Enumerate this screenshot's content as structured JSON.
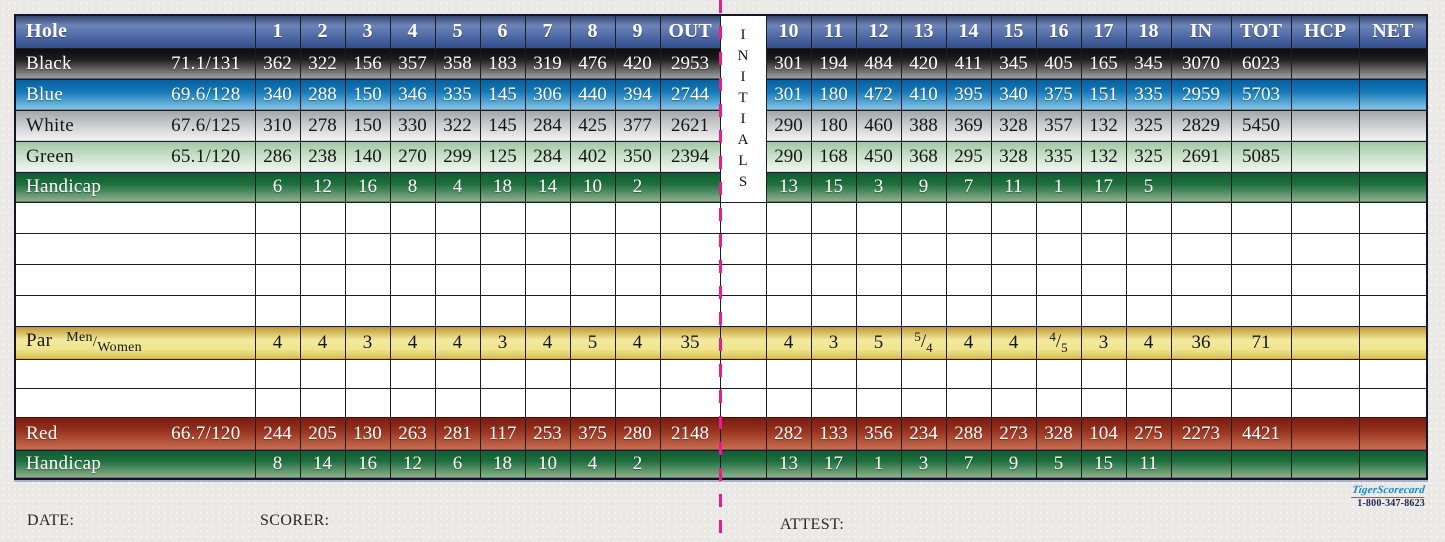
{
  "scorecard": {
    "header_row": {
      "label": "Hole",
      "front": [
        "1",
        "2",
        "3",
        "4",
        "5",
        "6",
        "7",
        "8",
        "9"
      ],
      "out_label": "OUT",
      "back": [
        "10",
        "11",
        "12",
        "13",
        "14",
        "15",
        "16",
        "17",
        "18"
      ],
      "in_label": "IN",
      "tot_label": "TOT",
      "hcp_label": "HCP",
      "net_label": "NET"
    },
    "initials_label": "INITIALS",
    "rows": [
      {
        "id": "black",
        "style": "black",
        "label": "Black",
        "rating": "71.1/131",
        "front": [
          "362",
          "322",
          "156",
          "357",
          "358",
          "183",
          "319",
          "476",
          "420"
        ],
        "out": "2953",
        "back": [
          "301",
          "194",
          "484",
          "420",
          "411",
          "345",
          "405",
          "165",
          "345"
        ],
        "in": "3070",
        "tot": "6023",
        "hcp": "",
        "net": ""
      },
      {
        "id": "blue",
        "style": "blue",
        "label": "Blue",
        "rating": "69.6/128",
        "front": [
          "340",
          "288",
          "150",
          "346",
          "335",
          "145",
          "306",
          "440",
          "394"
        ],
        "out": "2744",
        "back": [
          "301",
          "180",
          "472",
          "410",
          "395",
          "340",
          "375",
          "151",
          "335"
        ],
        "in": "2959",
        "tot": "5703",
        "hcp": "",
        "net": ""
      },
      {
        "id": "white",
        "style": "white",
        "label": "White",
        "rating": "67.6/125",
        "front": [
          "310",
          "278",
          "150",
          "330",
          "322",
          "145",
          "284",
          "425",
          "377"
        ],
        "out": "2621",
        "back": [
          "290",
          "180",
          "460",
          "388",
          "369",
          "328",
          "357",
          "132",
          "325"
        ],
        "in": "2829",
        "tot": "5450",
        "hcp": "",
        "net": ""
      },
      {
        "id": "green",
        "style": "green",
        "label": "Green",
        "rating": "65.1/120",
        "front": [
          "286",
          "238",
          "140",
          "270",
          "299",
          "125",
          "284",
          "402",
          "350"
        ],
        "out": "2394",
        "back": [
          "290",
          "168",
          "450",
          "368",
          "295",
          "328",
          "335",
          "132",
          "325"
        ],
        "in": "2691",
        "tot": "5085",
        "hcp": "",
        "net": ""
      },
      {
        "id": "handicap-mens",
        "style": "handicap",
        "label": "Handicap",
        "rating": "",
        "front": [
          "6",
          "12",
          "16",
          "8",
          "4",
          "18",
          "14",
          "10",
          "2"
        ],
        "out": "",
        "back": [
          "13",
          "15",
          "3",
          "9",
          "7",
          "11",
          "1",
          "17",
          "5"
        ],
        "in": "",
        "tot": "",
        "hcp": "",
        "net": ""
      },
      {
        "id": "blank-1",
        "style": "blank"
      },
      {
        "id": "blank-2",
        "style": "blank"
      },
      {
        "id": "blank-3",
        "style": "blank"
      },
      {
        "id": "blank-4",
        "style": "blank"
      },
      {
        "id": "par",
        "style": "par",
        "label": "Par",
        "label_sup": "Men",
        "label_sub": "Women",
        "front": [
          "4",
          "4",
          "3",
          "4",
          "4",
          "3",
          "4",
          "5",
          "4"
        ],
        "out": "35",
        "back": [
          "4",
          "3",
          "5",
          "5/4",
          "4",
          "4",
          "4/5",
          "3",
          "4"
        ],
        "in": "36",
        "tot": "71",
        "hcp": "",
        "net": ""
      },
      {
        "id": "blank-5",
        "style": "blank"
      },
      {
        "id": "blank-6",
        "style": "blank"
      },
      {
        "id": "red",
        "style": "red",
        "label": "Red",
        "rating": "66.7/120",
        "front": [
          "244",
          "205",
          "130",
          "263",
          "281",
          "117",
          "253",
          "375",
          "280"
        ],
        "out": "2148",
        "back": [
          "282",
          "133",
          "356",
          "234",
          "288",
          "273",
          "328",
          "104",
          "275"
        ],
        "in": "2273",
        "tot": "4421",
        "hcp": "",
        "net": ""
      },
      {
        "id": "handicap-womens",
        "style": "handicap",
        "label": "Handicap",
        "rating": "",
        "front": [
          "8",
          "14",
          "16",
          "12",
          "6",
          "18",
          "10",
          "4",
          "2"
        ],
        "out": "",
        "back": [
          "13",
          "17",
          "1",
          "3",
          "7",
          "9",
          "5",
          "15",
          "11"
        ],
        "in": "",
        "tot": "",
        "hcp": "",
        "net": ""
      }
    ],
    "footer": {
      "date_label": "DATE:",
      "scorer_label": "SCORER:",
      "attest_label": "ATTEST:"
    },
    "logo": {
      "name": "TigerScorecard",
      "phone": "1-800-347-8623"
    },
    "colors": {
      "fold_line": "#ea1d8d",
      "header_blue": "#2f4d8e",
      "handicap_green": "#0e5e2e",
      "par_gold": "#e8d35a",
      "red_tee": "#96311e",
      "logo_blue": "#1e85c7"
    }
  }
}
